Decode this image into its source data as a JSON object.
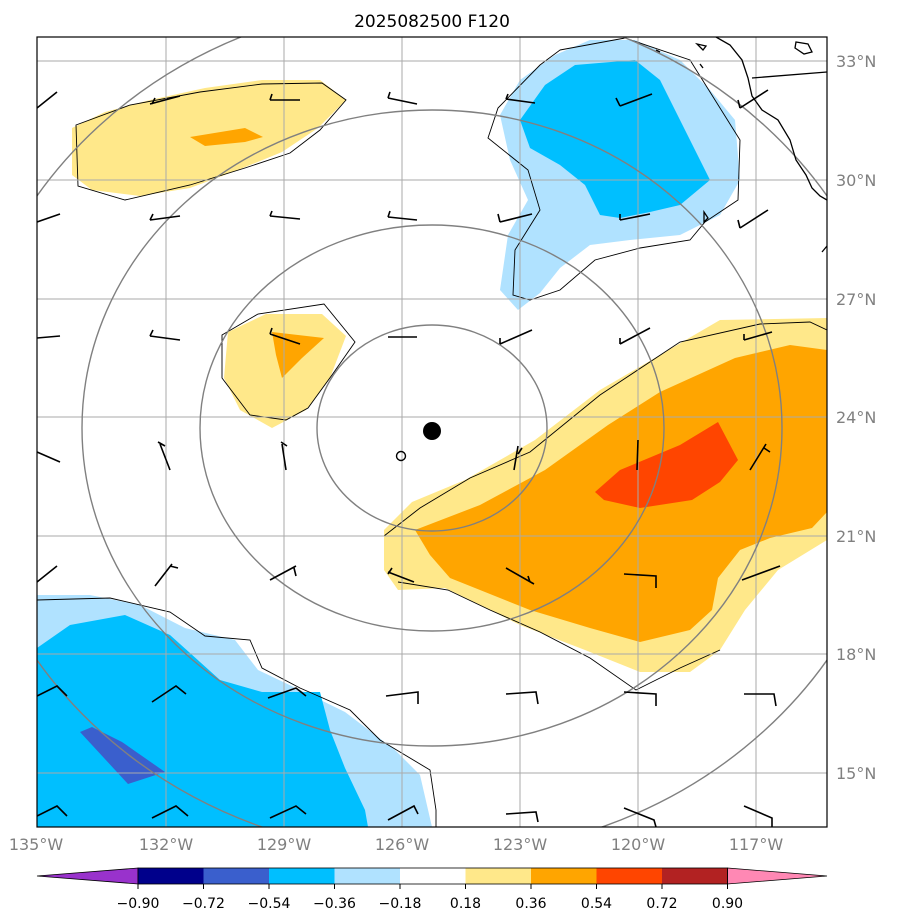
{
  "title": "2025082500 F120",
  "axes": {
    "lon_ticks": [
      "135°W",
      "132°W",
      "129°W",
      "126°W",
      "123°W",
      "120°W",
      "117°W"
    ],
    "lat_ticks": [
      "33°N",
      "30°N",
      "27°N",
      "24°N",
      "21°N",
      "18°N",
      "15°N"
    ],
    "lon_range": [
      -135,
      -115.5
    ],
    "lat_range": [
      14,
      33.5
    ]
  },
  "colorbar": {
    "tick_labels": [
      "−0.90",
      "−0.72",
      "−0.54",
      "−0.36",
      "−0.18",
      "0.18",
      "0.36",
      "0.54",
      "0.72",
      "0.90"
    ],
    "colors": [
      "#9932cc",
      "#00008b",
      "#3a5fcd",
      "#00bfff",
      "#b0e2ff",
      "#ffffff",
      "#ffe88a",
      "#ffa500",
      "#ff4500",
      "#b22222",
      "#ff88b4"
    ],
    "extend": "both"
  },
  "colors": {
    "grid": "#aaaaaa",
    "range_rings": "#808080",
    "coastline": "#000000",
    "barbs": "#000000",
    "storm_center": "#000000"
  },
  "markers": {
    "storm_center": {
      "lon": -125.3,
      "lat": 23.6,
      "style": "filled-circle"
    },
    "secondary": {
      "lon": -126.0,
      "lat": 23.0,
      "style": "open-circle"
    }
  }
}
